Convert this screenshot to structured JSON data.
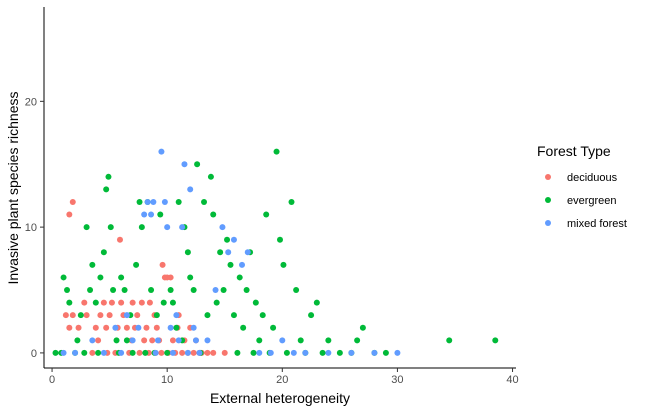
{
  "chart_data": {
    "type": "scatter",
    "title": "",
    "xlabel": "External heterogeneity",
    "ylabel": "Invasive plant species richness",
    "xlim": [
      -0.7,
      40.3
    ],
    "ylim": [
      -1.2,
      27.5
    ],
    "x_ticks": [
      0,
      10,
      20,
      30,
      40
    ],
    "y_ticks": [
      0,
      10,
      20
    ],
    "grid": false,
    "legend": {
      "title": "Forest Type",
      "placement": "right"
    },
    "series": [
      {
        "name": "deciduous",
        "color": "#F8766D",
        "points": [
          [
            1.5,
            11
          ],
          [
            1.8,
            12
          ],
          [
            1.2,
            3
          ],
          [
            1.5,
            2
          ],
          [
            1.8,
            3
          ],
          [
            2.3,
            2
          ],
          [
            2.8,
            4
          ],
          [
            3.0,
            3
          ],
          [
            3.5,
            0
          ],
          [
            3.8,
            2
          ],
          [
            4.0,
            1
          ],
          [
            4.2,
            3
          ],
          [
            4.5,
            4
          ],
          [
            4.7,
            2
          ],
          [
            4.8,
            0
          ],
          [
            5.0,
            3
          ],
          [
            5.2,
            4
          ],
          [
            5.5,
            0
          ],
          [
            5.7,
            2
          ],
          [
            5.9,
            9
          ],
          [
            6.0,
            4
          ],
          [
            6.2,
            3
          ],
          [
            6.5,
            2
          ],
          [
            6.7,
            0
          ],
          [
            6.9,
            1
          ],
          [
            7.0,
            4
          ],
          [
            7.2,
            2
          ],
          [
            7.4,
            3
          ],
          [
            7.6,
            0
          ],
          [
            7.8,
            4
          ],
          [
            8.0,
            1
          ],
          [
            8.2,
            2
          ],
          [
            8.4,
            0
          ],
          [
            8.5,
            4
          ],
          [
            8.7,
            1
          ],
          [
            8.9,
            3
          ],
          [
            9.0,
            0
          ],
          [
            9.1,
            2
          ],
          [
            9.3,
            1
          ],
          [
            9.5,
            0
          ],
          [
            9.6,
            7
          ],
          [
            9.8,
            6
          ],
          [
            10.0,
            6
          ],
          [
            10.1,
            0
          ],
          [
            10.3,
            6
          ],
          [
            10.5,
            1
          ],
          [
            10.7,
            0
          ],
          [
            10.9,
            2
          ],
          [
            11.0,
            3
          ],
          [
            11.3,
            0
          ],
          [
            11.5,
            1
          ],
          [
            11.8,
            0
          ],
          [
            12.0,
            2
          ],
          [
            12.3,
            0
          ],
          [
            12.5,
            1
          ],
          [
            12.8,
            0
          ],
          [
            13.0,
            0
          ],
          [
            13.5,
            0
          ],
          [
            14.0,
            0
          ],
          [
            15.0,
            0
          ]
        ]
      },
      {
        "name": "evergreen",
        "color": "#00BA38",
        "points": [
          [
            0.3,
            0
          ],
          [
            0.8,
            0
          ],
          [
            1.0,
            6
          ],
          [
            1.3,
            5
          ],
          [
            1.5,
            4
          ],
          [
            2.0,
            0
          ],
          [
            2.2,
            1
          ],
          [
            2.5,
            3
          ],
          [
            2.8,
            0
          ],
          [
            3.0,
            10
          ],
          [
            3.3,
            5
          ],
          [
            3.5,
            7
          ],
          [
            3.8,
            4
          ],
          [
            4.0,
            0
          ],
          [
            4.2,
            6
          ],
          [
            4.5,
            8
          ],
          [
            4.7,
            13
          ],
          [
            4.9,
            14
          ],
          [
            5.1,
            10
          ],
          [
            5.3,
            5
          ],
          [
            5.6,
            1
          ],
          [
            5.8,
            0
          ],
          [
            6.0,
            6
          ],
          [
            6.3,
            5
          ],
          [
            6.5,
            1
          ],
          [
            6.8,
            3
          ],
          [
            7.0,
            0
          ],
          [
            7.3,
            7
          ],
          [
            7.6,
            12
          ],
          [
            7.8,
            10
          ],
          [
            8.1,
            0
          ],
          [
            8.3,
            12
          ],
          [
            8.6,
            5
          ],
          [
            8.9,
            0
          ],
          [
            9.1,
            3
          ],
          [
            9.4,
            11
          ],
          [
            9.7,
            4
          ],
          [
            10.0,
            0
          ],
          [
            10.3,
            5
          ],
          [
            10.5,
            4
          ],
          [
            10.8,
            2
          ],
          [
            11.0,
            12
          ],
          [
            11.3,
            1
          ],
          [
            11.5,
            10
          ],
          [
            11.8,
            8
          ],
          [
            12.0,
            6
          ],
          [
            12.3,
            5
          ],
          [
            12.6,
            15
          ],
          [
            12.9,
            0
          ],
          [
            13.2,
            12
          ],
          [
            13.5,
            3
          ],
          [
            13.8,
            14
          ],
          [
            14.0,
            11
          ],
          [
            14.3,
            4
          ],
          [
            14.6,
            8
          ],
          [
            14.9,
            5
          ],
          [
            15.2,
            9
          ],
          [
            15.5,
            7
          ],
          [
            15.8,
            3
          ],
          [
            16.1,
            0
          ],
          [
            16.3,
            6
          ],
          [
            16.6,
            2
          ],
          [
            16.9,
            5
          ],
          [
            17.2,
            8
          ],
          [
            17.5,
            0
          ],
          [
            17.7,
            4
          ],
          [
            18.0,
            1
          ],
          [
            18.3,
            3
          ],
          [
            18.6,
            11
          ],
          [
            18.9,
            0
          ],
          [
            19.2,
            2
          ],
          [
            19.5,
            16
          ],
          [
            19.8,
            9
          ],
          [
            20.1,
            7
          ],
          [
            20.4,
            0
          ],
          [
            20.8,
            12
          ],
          [
            21.2,
            5
          ],
          [
            21.6,
            1
          ],
          [
            22.0,
            0
          ],
          [
            22.5,
            3
          ],
          [
            23.0,
            4
          ],
          [
            23.5,
            0
          ],
          [
            24.0,
            1
          ],
          [
            25.0,
            0
          ],
          [
            26.0,
            0
          ],
          [
            26.5,
            1
          ],
          [
            27.0,
            2
          ],
          [
            28.0,
            0
          ],
          [
            29.0,
            0
          ],
          [
            34.5,
            1
          ],
          [
            38.5,
            1
          ]
        ]
      },
      {
        "name": "mixed forest",
        "color": "#619CFF",
        "points": [
          [
            1.0,
            0
          ],
          [
            2.0,
            0
          ],
          [
            3.5,
            1
          ],
          [
            4.5,
            0
          ],
          [
            5.5,
            2
          ],
          [
            6.0,
            0
          ],
          [
            6.5,
            3
          ],
          [
            7.0,
            1
          ],
          [
            7.5,
            2
          ],
          [
            8.0,
            11
          ],
          [
            8.3,
            12
          ],
          [
            8.6,
            11
          ],
          [
            8.8,
            12
          ],
          [
            9.0,
            0
          ],
          [
            9.2,
            1
          ],
          [
            9.5,
            16
          ],
          [
            9.8,
            12
          ],
          [
            10.0,
            10
          ],
          [
            10.3,
            2
          ],
          [
            10.5,
            0
          ],
          [
            10.8,
            3
          ],
          [
            11.0,
            1
          ],
          [
            11.3,
            10
          ],
          [
            11.5,
            15
          ],
          [
            11.8,
            0
          ],
          [
            12.0,
            13
          ],
          [
            12.3,
            2
          ],
          [
            12.5,
            1
          ],
          [
            12.8,
            0
          ],
          [
            13.5,
            1
          ],
          [
            14.2,
            5
          ],
          [
            14.8,
            10
          ],
          [
            15.3,
            8
          ],
          [
            15.8,
            9
          ],
          [
            16.5,
            7
          ],
          [
            17.0,
            8
          ],
          [
            18.0,
            0
          ],
          [
            19.0,
            0
          ],
          [
            20.0,
            1
          ],
          [
            21.0,
            0
          ],
          [
            22.0,
            0
          ],
          [
            24.0,
            0
          ],
          [
            26.0,
            0
          ],
          [
            28.0,
            0
          ],
          [
            30.0,
            0
          ]
        ]
      }
    ]
  }
}
